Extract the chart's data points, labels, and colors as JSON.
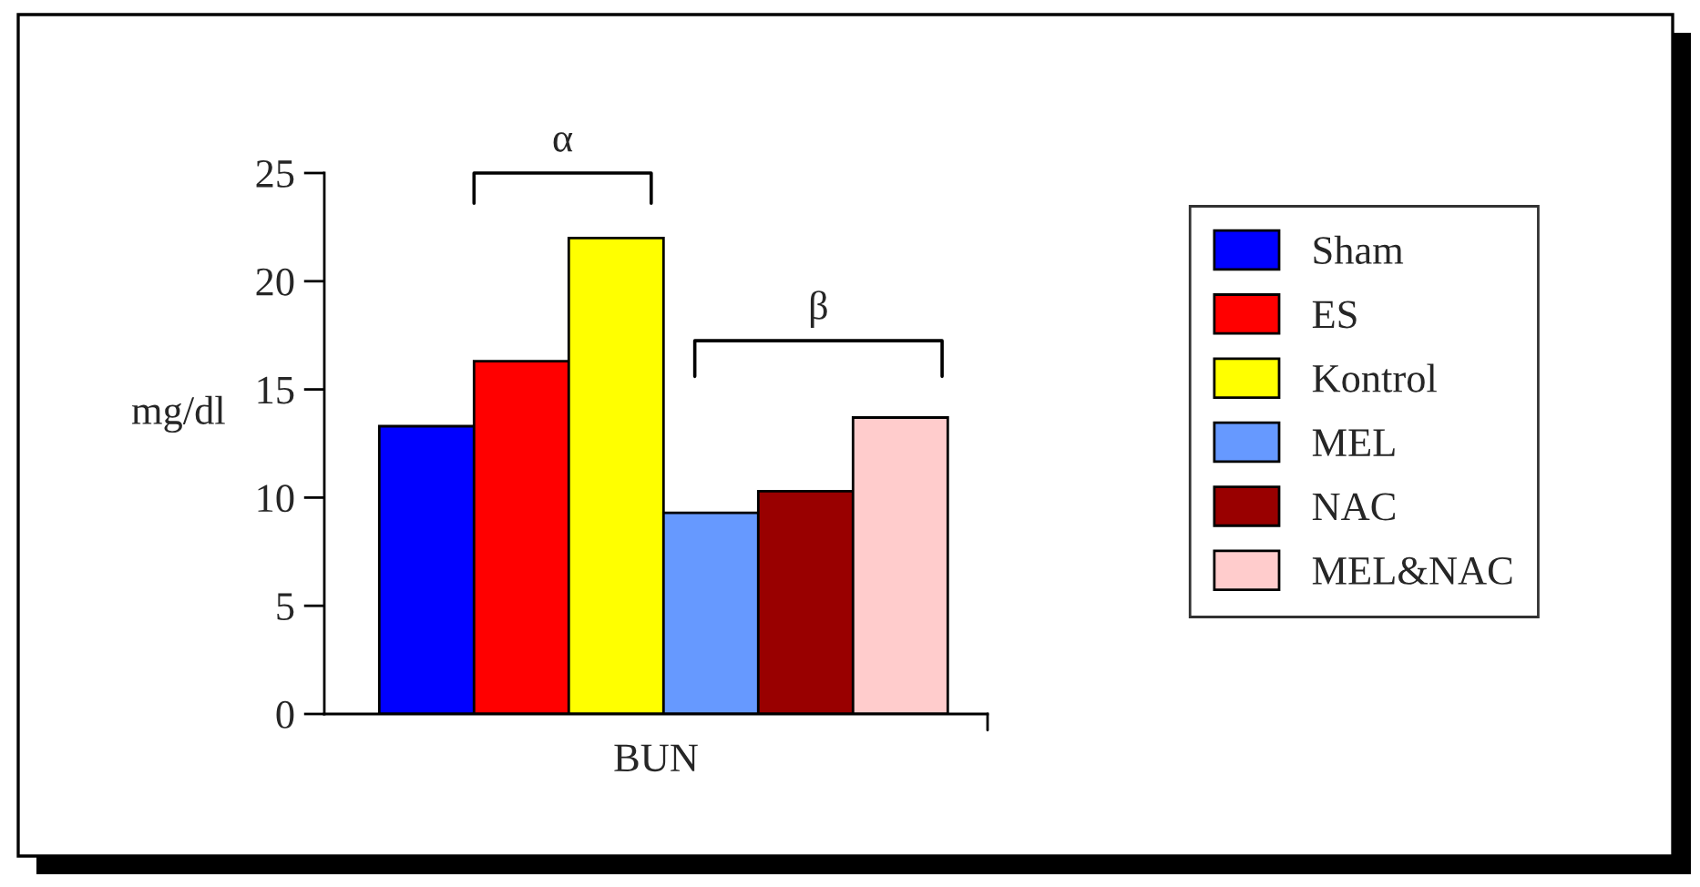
{
  "chart_data": {
    "type": "bar",
    "ylabel": "mg/dl",
    "xlabel": "BUN",
    "categories": [
      null,
      null,
      null,
      null,
      null,
      null
    ],
    "series": [
      {
        "name": "Sham",
        "color": "#0000ff",
        "values": [
          13.3,
          null,
          null,
          null,
          null,
          null
        ]
      },
      {
        "name": "ES",
        "color": "#ff0000",
        "values": [
          null,
          16.3,
          null,
          null,
          null,
          null
        ]
      },
      {
        "name": "Kontrol",
        "color": "#ffff00",
        "values": [
          null,
          null,
          22.0,
          null,
          null,
          null
        ]
      },
      {
        "name": "MEL",
        "color": "#6699ff",
        "values": [
          null,
          null,
          null,
          9.3,
          null,
          null
        ]
      },
      {
        "name": "NAC",
        "color": "#990000",
        "values": [
          null,
          null,
          null,
          null,
          10.3,
          null
        ]
      },
      {
        "name": "MEL&NAC",
        "color": "#ffcccc",
        "values": [
          null,
          null,
          null,
          null,
          null,
          13.7
        ]
      }
    ],
    "ylim": [
      0,
      25
    ],
    "yticks": [
      0,
      5,
      10,
      15,
      20,
      25
    ],
    "grid": false,
    "legend": "right",
    "annotations": [
      "α",
      "β"
    ]
  }
}
